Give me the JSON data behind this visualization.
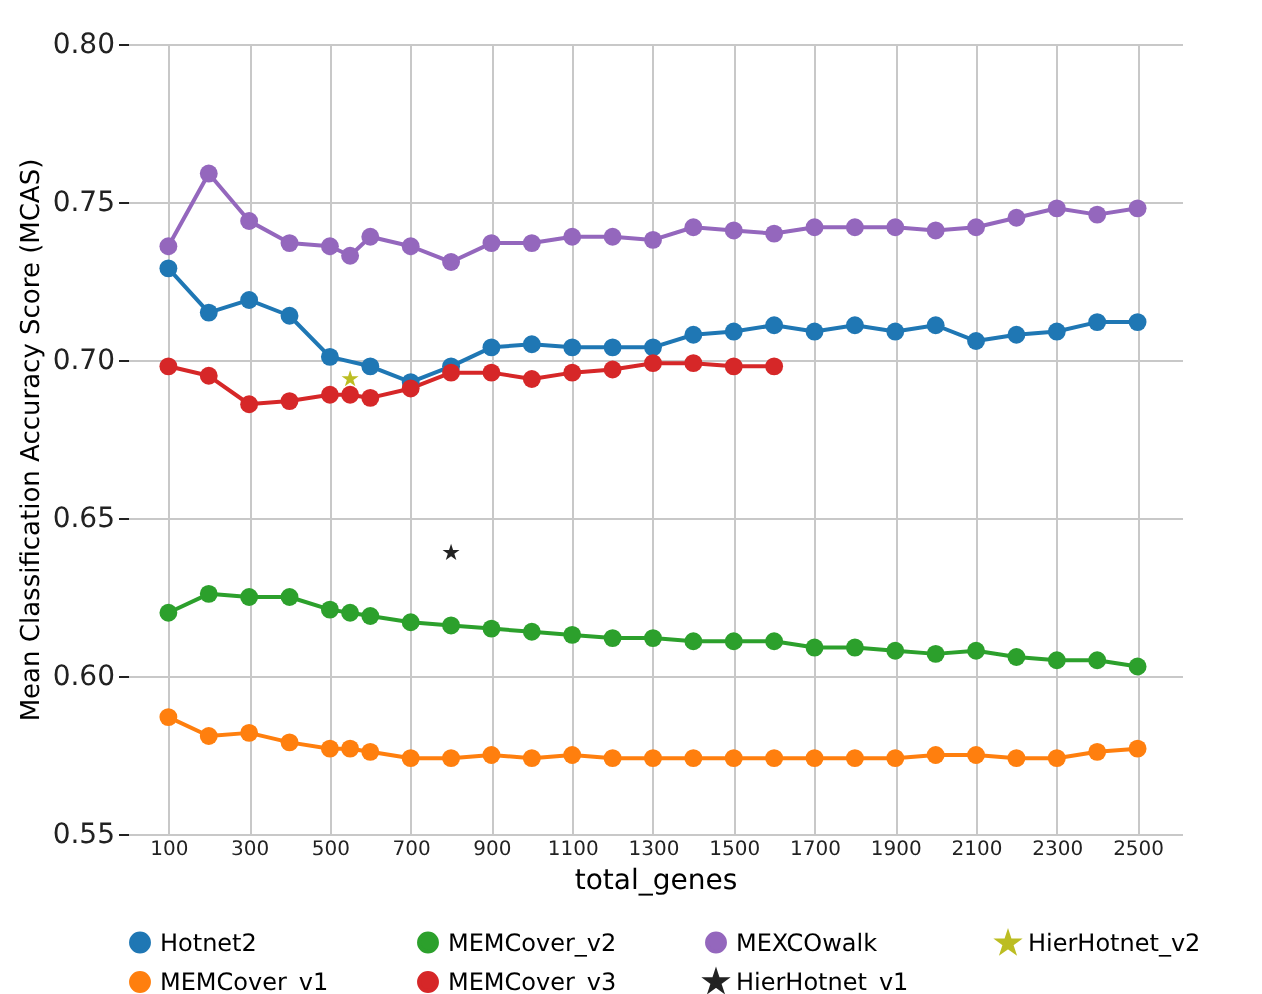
{
  "chart_data": {
    "type": "line",
    "xlabel": "total_genes",
    "ylabel": "Mean Classification Accuracy Score (MCAS)",
    "xlim": [
      0,
      2610
    ],
    "xticks": [
      100,
      300,
      500,
      700,
      900,
      1100,
      1300,
      1500,
      1700,
      1900,
      2100,
      2300,
      2500
    ],
    "ylim": [
      0.55,
      0.8
    ],
    "yticks": [
      0.55,
      {
        "value": 0.6,
        "label": "0.60"
      },
      0.65,
      {
        "value": 0.7,
        "label": "0.70"
      },
      0.75,
      {
        "value": 0.8,
        "label": "0.80"
      }
    ],
    "grid": true,
    "legend": "bottom",
    "marker": "circle",
    "series": [
      {
        "name": "Hotnet2",
        "color": "#1f77b4",
        "x": [
          100,
          200,
          300,
          400,
          500,
          600,
          700,
          800,
          900,
          1000,
          1100,
          1200,
          1300,
          1400,
          1500,
          1600,
          1700,
          1800,
          1900,
          2000,
          2100,
          2200,
          2300,
          2400,
          2500
        ],
        "values": [
          0.729,
          0.715,
          0.719,
          0.714,
          0.701,
          0.698,
          0.693,
          0.698,
          0.704,
          0.705,
          0.704,
          0.704,
          0.704,
          0.708,
          0.709,
          0.711,
          0.709,
          0.711,
          0.709,
          0.711,
          0.706,
          0.708,
          0.709,
          0.712,
          0.712
        ]
      },
      {
        "name": "MEMCover_v1",
        "color": "#ff7f0e",
        "x": [
          100,
          200,
          300,
          400,
          500,
          550,
          600,
          700,
          800,
          900,
          1000,
          1100,
          1200,
          1300,
          1400,
          1500,
          1600,
          1700,
          1800,
          1900,
          2000,
          2100,
          2200,
          2300,
          2400,
          2500
        ],
        "values": [
          0.587,
          0.581,
          0.582,
          0.579,
          0.577,
          0.577,
          0.576,
          0.574,
          0.574,
          0.575,
          0.574,
          0.575,
          0.574,
          0.574,
          0.574,
          0.574,
          0.574,
          0.574,
          0.574,
          0.574,
          0.575,
          0.575,
          0.574,
          0.574,
          0.576,
          0.577
        ]
      },
      {
        "name": "MEMCover_v2",
        "color": "#2ca02c",
        "x": [
          100,
          200,
          300,
          400,
          500,
          550,
          600,
          700,
          800,
          900,
          1000,
          1100,
          1200,
          1300,
          1400,
          1500,
          1600,
          1700,
          1800,
          1900,
          2000,
          2100,
          2200,
          2300,
          2400,
          2500
        ],
        "values": [
          0.62,
          0.626,
          0.625,
          0.625,
          0.621,
          0.62,
          0.619,
          0.617,
          0.616,
          0.615,
          0.614,
          0.613,
          0.612,
          0.612,
          0.611,
          0.611,
          0.611,
          0.609,
          0.609,
          0.608,
          0.607,
          0.608,
          0.606,
          0.605,
          0.605,
          0.603
        ]
      },
      {
        "name": "MEMCover_v3",
        "color": "#d62728",
        "x": [
          100,
          200,
          300,
          400,
          500,
          550,
          600,
          700,
          800,
          900,
          1000,
          1100,
          1200,
          1300,
          1400,
          1500,
          1600
        ],
        "values": [
          0.698,
          0.695,
          0.686,
          0.687,
          0.689,
          0.689,
          0.688,
          0.691,
          0.696,
          0.696,
          0.694,
          0.696,
          0.697,
          0.699,
          0.699,
          0.698,
          0.698
        ]
      },
      {
        "name": "MEXCOwalk",
        "color": "#9467bd",
        "x": [
          100,
          200,
          300,
          400,
          500,
          550,
          600,
          700,
          800,
          900,
          1000,
          1100,
          1200,
          1300,
          1400,
          1500,
          1600,
          1700,
          1800,
          1900,
          2000,
          2100,
          2200,
          2300,
          2400,
          2500
        ],
        "values": [
          0.736,
          0.759,
          0.744,
          0.737,
          0.736,
          0.733,
          0.739,
          0.736,
          0.731,
          0.737,
          0.737,
          0.739,
          0.739,
          0.738,
          0.742,
          0.741,
          0.74,
          0.742,
          0.742,
          0.742,
          0.741,
          0.742,
          0.745,
          0.748,
          0.746,
          0.748
        ]
      },
      {
        "name": "HierHotnet_v1",
        "type": "scatter",
        "marker": "star",
        "color": "#222222",
        "x": [
          800
        ],
        "values": [
          0.639
        ]
      },
      {
        "name": "HierHotnet_v2",
        "type": "scatter",
        "marker": "star",
        "color": "#bcbd22",
        "x": [
          550
        ],
        "values": [
          0.694
        ]
      }
    ]
  }
}
